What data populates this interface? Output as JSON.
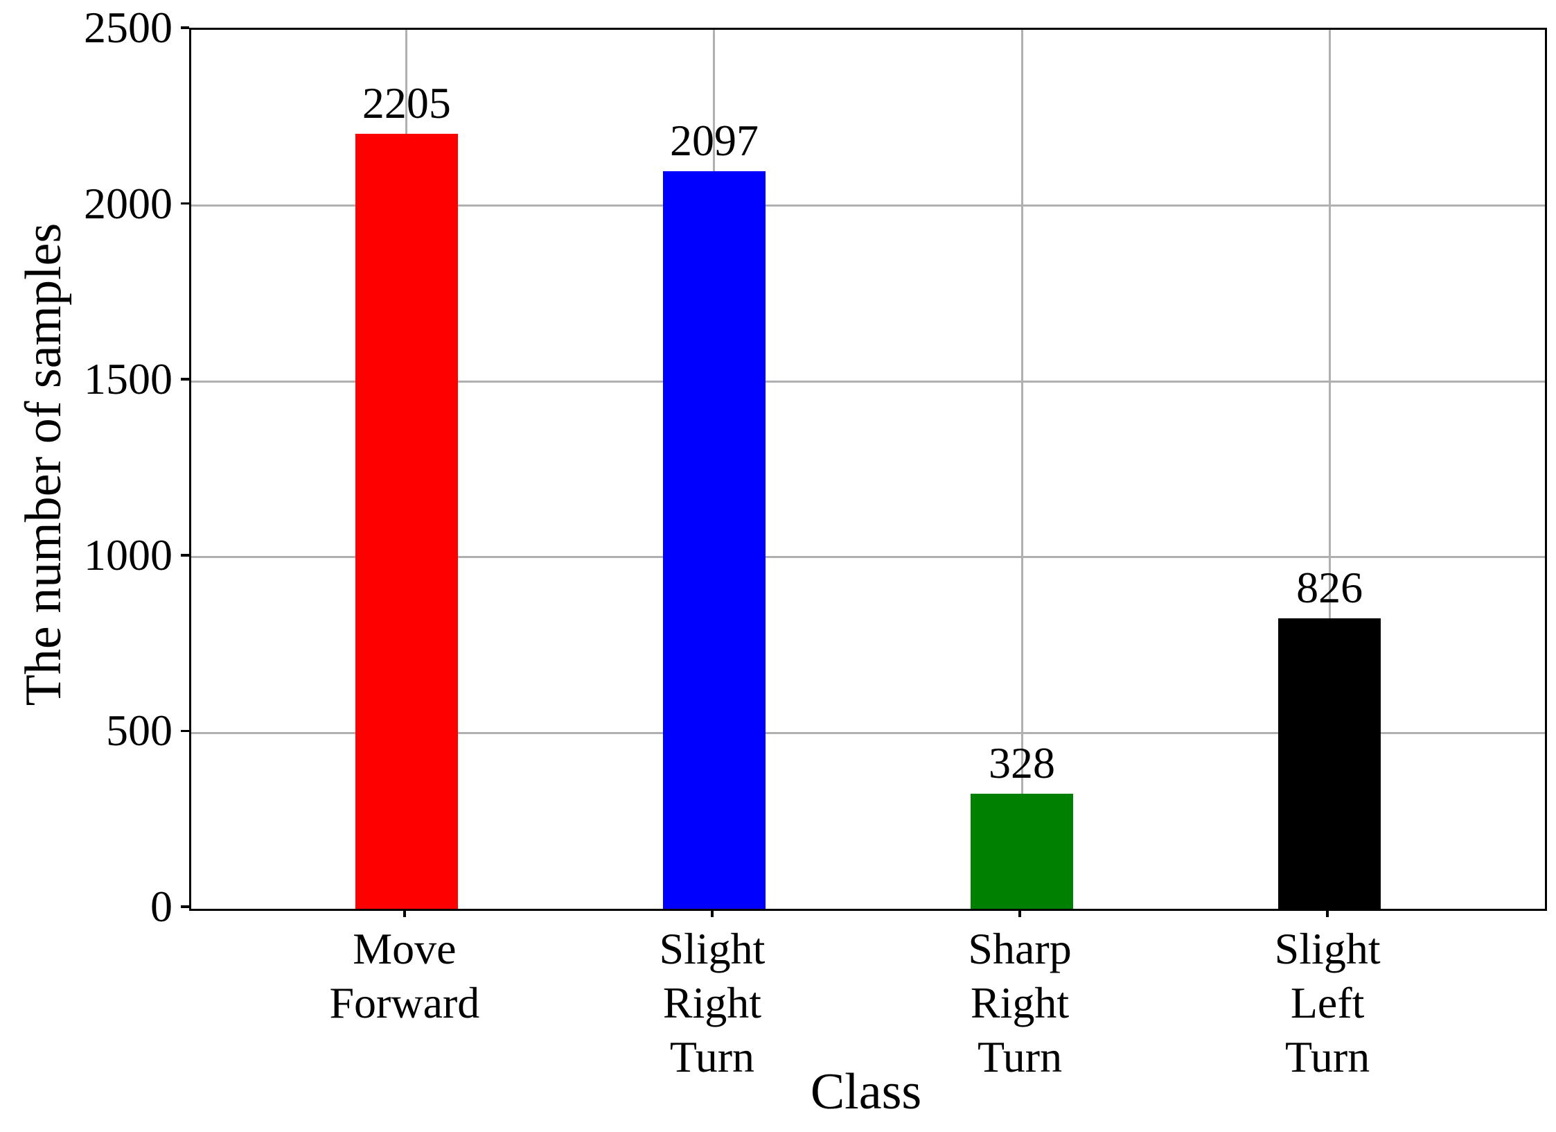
{
  "chart_data": {
    "type": "bar",
    "title": "",
    "xlabel": "Class",
    "ylabel": "The number of samples",
    "categories": [
      "Move\nForward",
      "Slight\nRight\nTurn",
      "Sharp\nRight\nTurn",
      "Slight\nLeft\nTurn"
    ],
    "values": [
      2205,
      2097,
      328,
      826
    ],
    "value_labels": [
      "2205",
      "2097",
      "328",
      "826"
    ],
    "bar_colors": [
      "#ff0000",
      "#0000ff",
      "#008000",
      "#000000"
    ],
    "ylim": [
      0,
      2500
    ],
    "yticks": [
      0,
      500,
      1000,
      1500,
      2000,
      2500
    ],
    "ytick_labels": [
      "0",
      "500",
      "1000",
      "1500",
      "2000",
      "2500"
    ],
    "xlim": [
      -0.7,
      3.7
    ],
    "bar_width": 0.3333,
    "grid": "both",
    "gridline_color": "#b0b0b0",
    "axis_color": "#000000",
    "background_color": "#ffffff",
    "legend": "none"
  }
}
